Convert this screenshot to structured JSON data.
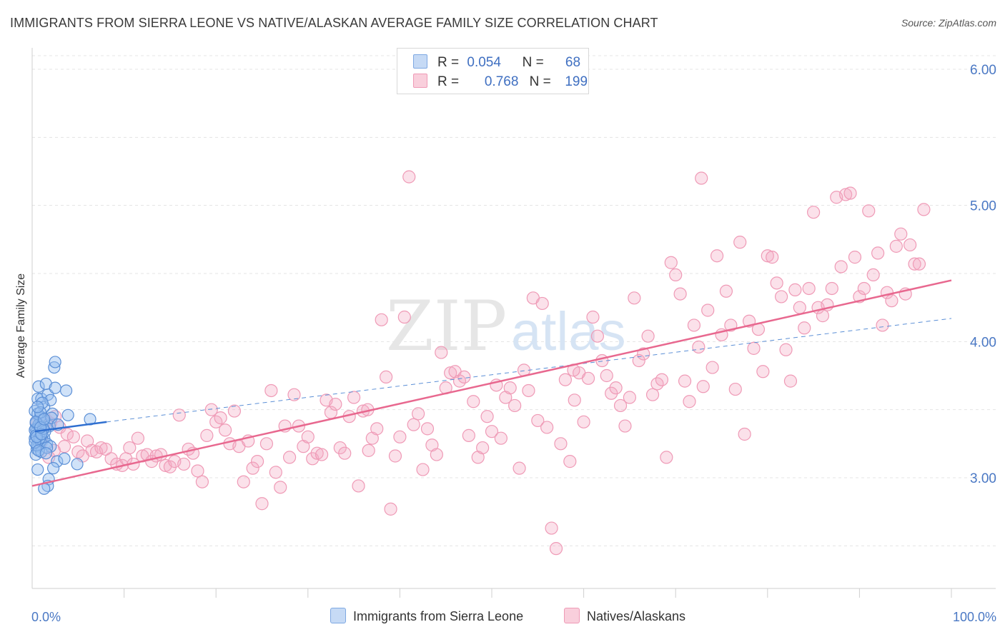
{
  "header": {
    "title": "IMMIGRANTS FROM SIERRA LEONE VS NATIVE/ALASKAN AVERAGE FAMILY SIZE CORRELATION CHART",
    "source": "Source: ZipAtlas.com"
  },
  "legend": {
    "rows": [
      {
        "r_label": "R =",
        "r_value": "0.054",
        "n_label": "N =",
        "n_value": "68",
        "color": "#a9c8f0"
      },
      {
        "r_label": "R =",
        "r_value": "0.768",
        "n_label": "N =",
        "n_value": "199",
        "color": "#f5b3c8"
      }
    ]
  },
  "bottom_legend": {
    "items": [
      {
        "label": "Immigrants from Sierra Leone",
        "color": "#a9c8f0"
      },
      {
        "label": "Natives/Alaskans",
        "color": "#f5b3c8"
      }
    ]
  },
  "watermark": {
    "zip": "ZIP",
    "atlas": "atlas"
  },
  "chart_data": {
    "type": "scatter",
    "title": "IMMIGRANTS FROM SIERRA LEONE VS NATIVE/ALASKAN AVERAGE FAMILY SIZE CORRELATION CHART",
    "xlabel": "",
    "ylabel": "Average Family Size",
    "xlim": [
      0,
      100
    ],
    "ylim": [
      2.0,
      6.15
    ],
    "x_tick_labels": [
      "0.0%",
      "100.0%"
    ],
    "y_ticks": [
      3.0,
      4.0,
      5.0,
      6.0
    ],
    "y_tick_labels": [
      "3.00",
      "4.00",
      "5.00",
      "6.00"
    ],
    "grid": true,
    "legend_position": "top-center",
    "colors": {
      "blue": "#6a9ee0",
      "pink": "#e983a6",
      "blue_line": "#2f6fd0",
      "pink_line": "#e8688f"
    },
    "series": [
      {
        "name": "Immigrants from Sierra Leone",
        "color": "#6a9ee0",
        "trend": {
          "x": [
            0.3,
            8.1
          ],
          "y": [
            3.34,
            3.41
          ],
          "extended_to": [
            100,
            4.17
          ]
        },
        "points": [
          [
            0.3,
            3.29
          ],
          [
            0.5,
            3.31
          ],
          [
            0.4,
            3.36
          ],
          [
            0.6,
            3.23
          ],
          [
            0.8,
            3.44
          ],
          [
            0.3,
            3.49
          ],
          [
            1.0,
            3.33
          ],
          [
            1.2,
            3.4
          ],
          [
            0.7,
            3.26
          ],
          [
            0.5,
            3.21
          ],
          [
            1.5,
            3.37
          ],
          [
            0.9,
            3.45
          ],
          [
            0.4,
            3.17
          ],
          [
            1.3,
            3.29
          ],
          [
            0.6,
            3.58
          ],
          [
            0.7,
            3.67
          ],
          [
            1.0,
            3.58
          ],
          [
            1.3,
            3.52
          ],
          [
            1.7,
            3.61
          ],
          [
            1.5,
            3.69
          ],
          [
            2.0,
            3.57
          ],
          [
            2.2,
            3.47
          ],
          [
            2.5,
            3.66
          ],
          [
            2.4,
            3.81
          ],
          [
            2.5,
            3.85
          ],
          [
            3.7,
            3.64
          ],
          [
            3.9,
            3.46
          ],
          [
            6.3,
            3.43
          ],
          [
            4.9,
            3.1
          ],
          [
            2.7,
            3.12
          ],
          [
            1.8,
            2.99
          ],
          [
            1.7,
            2.94
          ],
          [
            1.3,
            2.92
          ],
          [
            0.6,
            3.06
          ],
          [
            0.4,
            3.4
          ],
          [
            0.8,
            3.38
          ],
          [
            0.5,
            3.34
          ],
          [
            1.1,
            3.28
          ],
          [
            1.6,
            3.25
          ],
          [
            2.0,
            3.23
          ],
          [
            2.3,
            3.07
          ],
          [
            1.0,
            3.19
          ],
          [
            0.5,
            3.24
          ],
          [
            0.9,
            3.27
          ],
          [
            0.3,
            3.35
          ],
          [
            0.7,
            3.39
          ],
          [
            1.2,
            3.42
          ],
          [
            1.9,
            3.38
          ],
          [
            0.4,
            3.31
          ],
          [
            0.8,
            3.29
          ],
          [
            1.4,
            3.34
          ],
          [
            1.6,
            3.22
          ],
          [
            3.5,
            3.14
          ],
          [
            0.6,
            3.47
          ],
          [
            1.1,
            3.55
          ],
          [
            0.9,
            3.48
          ],
          [
            2.1,
            3.44
          ],
          [
            1.2,
            3.36
          ],
          [
            0.3,
            3.26
          ],
          [
            0.7,
            3.2
          ],
          [
            0.5,
            3.3
          ],
          [
            1.0,
            3.32
          ],
          [
            1.5,
            3.18
          ],
          [
            2.8,
            3.39
          ],
          [
            0.4,
            3.41
          ],
          [
            0.9,
            3.37
          ],
          [
            1.3,
            3.43
          ],
          [
            0.6,
            3.52
          ]
        ]
      },
      {
        "name": "Natives/Alaskans",
        "color": "#e983a6",
        "trend": {
          "x": [
            0,
            100
          ],
          "y": [
            2.94,
            4.45
          ]
        },
        "points": [
          [
            0.5,
            3.41
          ],
          [
            0.8,
            3.33
          ],
          [
            1.2,
            3.38
          ],
          [
            1.6,
            3.42
          ],
          [
            2.0,
            3.4
          ],
          [
            2.5,
            3.45
          ],
          [
            3.0,
            3.37
          ],
          [
            3.5,
            3.23
          ],
          [
            1.0,
            3.26
          ],
          [
            1.8,
            3.15
          ],
          [
            2.4,
            3.2
          ],
          [
            3.8,
            3.32
          ],
          [
            4.5,
            3.3
          ],
          [
            5.0,
            3.19
          ],
          [
            5.5,
            3.16
          ],
          [
            6.0,
            3.27
          ],
          [
            6.5,
            3.2
          ],
          [
            7.0,
            3.19
          ],
          [
            7.5,
            3.22
          ],
          [
            8.0,
            3.21
          ],
          [
            8.6,
            3.14
          ],
          [
            9.2,
            3.1
          ],
          [
            9.8,
            3.09
          ],
          [
            10.2,
            3.14
          ],
          [
            10.6,
            3.22
          ],
          [
            11.0,
            3.1
          ],
          [
            11.5,
            3.29
          ],
          [
            12.0,
            3.16
          ],
          [
            12.5,
            3.17
          ],
          [
            13.0,
            3.12
          ],
          [
            13.5,
            3.16
          ],
          [
            14.0,
            3.17
          ],
          [
            14.5,
            3.09
          ],
          [
            15.0,
            3.08
          ],
          [
            15.5,
            3.12
          ],
          [
            16.0,
            3.46
          ],
          [
            16.5,
            3.1
          ],
          [
            17.0,
            3.21
          ],
          [
            17.5,
            3.18
          ],
          [
            18.0,
            3.05
          ],
          [
            18.5,
            2.97
          ],
          [
            19.0,
            3.31
          ],
          [
            19.5,
            3.5
          ],
          [
            20.0,
            3.41
          ],
          [
            20.5,
            3.44
          ],
          [
            21.0,
            3.35
          ],
          [
            21.5,
            3.25
          ],
          [
            22.0,
            3.49
          ],
          [
            22.5,
            3.23
          ],
          [
            23.0,
            2.97
          ],
          [
            23.5,
            3.27
          ],
          [
            24.0,
            3.07
          ],
          [
            24.5,
            3.12
          ],
          [
            25.0,
            2.81
          ],
          [
            25.5,
            3.25
          ],
          [
            26.0,
            3.64
          ],
          [
            26.5,
            3.04
          ],
          [
            27.0,
            2.93
          ],
          [
            27.5,
            3.38
          ],
          [
            28.0,
            3.15
          ],
          [
            28.5,
            3.61
          ],
          [
            29.0,
            3.38
          ],
          [
            29.5,
            3.23
          ],
          [
            30.0,
            3.3
          ],
          [
            30.5,
            3.14
          ],
          [
            31.0,
            3.18
          ],
          [
            31.5,
            3.17
          ],
          [
            32.0,
            3.57
          ],
          [
            32.5,
            3.48
          ],
          [
            33.0,
            3.54
          ],
          [
            33.5,
            3.22
          ],
          [
            34.0,
            3.18
          ],
          [
            34.5,
            3.45
          ],
          [
            35.0,
            3.59
          ],
          [
            35.5,
            2.94
          ],
          [
            36.0,
            3.49
          ],
          [
            36.5,
            3.5
          ],
          [
            37.0,
            3.29
          ],
          [
            37.5,
            3.36
          ],
          [
            38.0,
            4.16
          ],
          [
            38.5,
            3.74
          ],
          [
            39.0,
            2.77
          ],
          [
            39.5,
            3.16
          ],
          [
            40.0,
            3.3
          ],
          [
            40.5,
            4.18
          ],
          [
            41.0,
            5.21
          ],
          [
            41.5,
            3.39
          ],
          [
            42.0,
            3.47
          ],
          [
            42.5,
            3.06
          ],
          [
            43.0,
            3.36
          ],
          [
            43.5,
            3.24
          ],
          [
            44.0,
            3.17
          ],
          [
            44.5,
            3.92
          ],
          [
            45.0,
            3.66
          ],
          [
            45.5,
            3.77
          ],
          [
            46.0,
            3.78
          ],
          [
            46.5,
            3.71
          ],
          [
            47.0,
            3.74
          ],
          [
            47.5,
            3.31
          ],
          [
            48.0,
            3.56
          ],
          [
            48.5,
            3.15
          ],
          [
            49.0,
            3.22
          ],
          [
            49.5,
            3.45
          ],
          [
            50.0,
            3.34
          ],
          [
            50.5,
            3.68
          ],
          [
            51.0,
            3.29
          ],
          [
            51.5,
            3.59
          ],
          [
            52.0,
            3.66
          ],
          [
            52.5,
            3.53
          ],
          [
            53.0,
            3.07
          ],
          [
            53.5,
            3.79
          ],
          [
            54.0,
            3.64
          ],
          [
            54.5,
            4.32
          ],
          [
            55.0,
            3.42
          ],
          [
            55.5,
            4.28
          ],
          [
            56.0,
            3.37
          ],
          [
            56.5,
            2.63
          ],
          [
            57.0,
            2.48
          ],
          [
            57.5,
            3.25
          ],
          [
            58.0,
            3.72
          ],
          [
            58.5,
            3.12
          ],
          [
            59.0,
            3.57
          ],
          [
            59.5,
            3.77
          ],
          [
            60.0,
            3.41
          ],
          [
            60.5,
            3.73
          ],
          [
            61.0,
            4.18
          ],
          [
            61.5,
            4.04
          ],
          [
            62.0,
            3.86
          ],
          [
            62.5,
            3.75
          ],
          [
            63.0,
            3.62
          ],
          [
            63.5,
            3.66
          ],
          [
            64.0,
            3.53
          ],
          [
            64.5,
            3.38
          ],
          [
            65.0,
            3.59
          ],
          [
            65.5,
            4.32
          ],
          [
            66.0,
            3.86
          ],
          [
            66.5,
            3.91
          ],
          [
            67.0,
            4.04
          ],
          [
            67.5,
            3.61
          ],
          [
            68.0,
            3.69
          ],
          [
            68.5,
            3.72
          ],
          [
            69.0,
            3.15
          ],
          [
            69.5,
            4.58
          ],
          [
            70.0,
            4.49
          ],
          [
            70.5,
            4.35
          ],
          [
            71.0,
            3.71
          ],
          [
            71.5,
            3.56
          ],
          [
            72.0,
            4.12
          ],
          [
            72.5,
            3.96
          ],
          [
            73.0,
            3.67
          ],
          [
            73.5,
            4.23
          ],
          [
            74.0,
            3.81
          ],
          [
            74.5,
            4.63
          ],
          [
            75.0,
            4.05
          ],
          [
            75.5,
            4.37
          ],
          [
            76.0,
            4.12
          ],
          [
            76.5,
            3.65
          ],
          [
            77.0,
            4.73
          ],
          [
            77.5,
            3.32
          ],
          [
            78.0,
            4.15
          ],
          [
            78.5,
            3.95
          ],
          [
            79.0,
            4.09
          ],
          [
            79.5,
            3.78
          ],
          [
            80.0,
            4.63
          ],
          [
            80.5,
            4.62
          ],
          [
            81.0,
            4.43
          ],
          [
            81.5,
            4.33
          ],
          [
            82.0,
            3.94
          ],
          [
            82.5,
            3.71
          ],
          [
            83.0,
            4.38
          ],
          [
            83.5,
            4.25
          ],
          [
            84.0,
            4.1
          ],
          [
            84.5,
            4.39
          ],
          [
            85.0,
            4.95
          ],
          [
            85.5,
            4.25
          ],
          [
            86.0,
            4.19
          ],
          [
            86.5,
            4.27
          ],
          [
            87.0,
            4.39
          ],
          [
            87.5,
            5.06
          ],
          [
            88.0,
            4.55
          ],
          [
            88.5,
            5.08
          ],
          [
            89.0,
            5.09
          ],
          [
            89.5,
            4.62
          ],
          [
            90.0,
            4.33
          ],
          [
            90.5,
            4.39
          ],
          [
            91.0,
            4.96
          ],
          [
            91.5,
            4.49
          ],
          [
            92.0,
            4.65
          ],
          [
            92.5,
            4.12
          ],
          [
            93.0,
            4.36
          ],
          [
            93.5,
            4.3
          ],
          [
            94.0,
            4.7
          ],
          [
            94.5,
            4.79
          ],
          [
            95.0,
            4.35
          ],
          [
            95.5,
            4.71
          ],
          [
            96.0,
            4.57
          ],
          [
            96.5,
            4.57
          ],
          [
            97.0,
            4.97
          ],
          [
            72.8,
            5.2
          ],
          [
            36.6,
            3.2
          ],
          [
            58.9,
            3.79
          ]
        ]
      }
    ]
  }
}
